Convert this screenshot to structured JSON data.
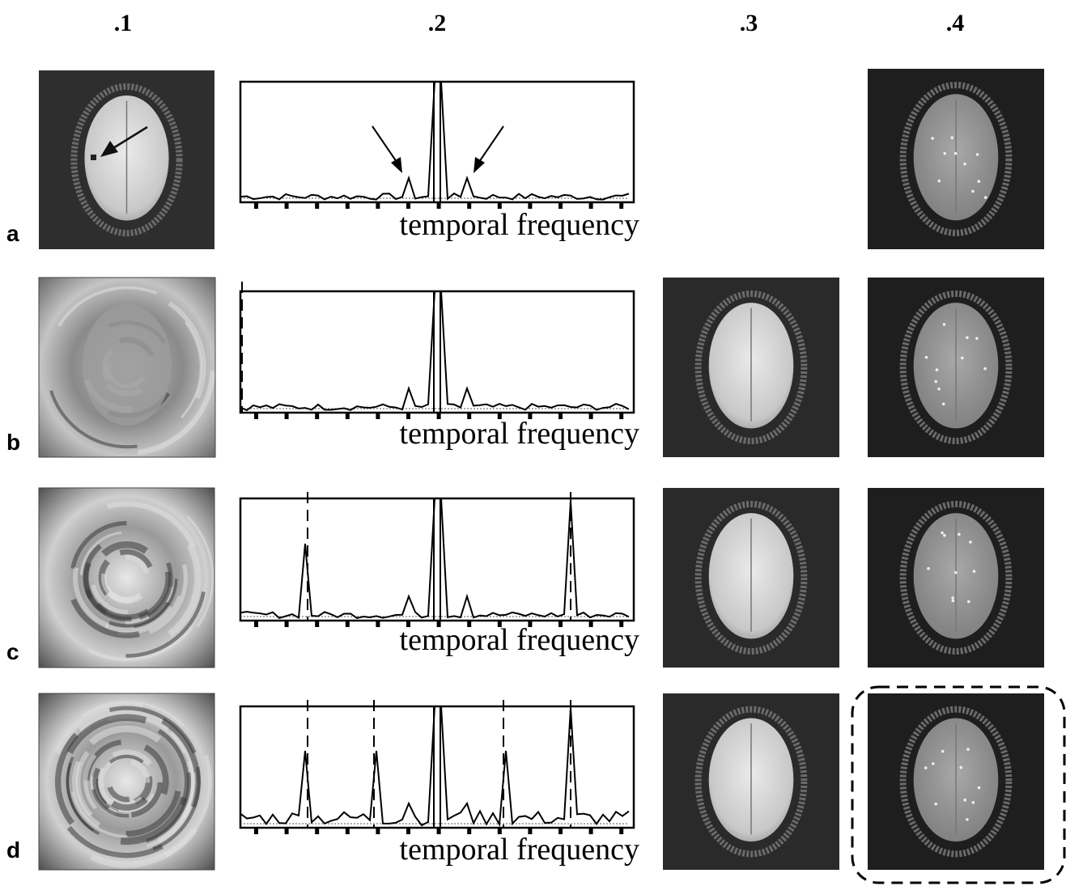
{
  "columns": [
    ".1",
    ".2",
    ".3",
    ".4"
  ],
  "rows": [
    {
      "label": "a",
      "axis_label": "temporal frequency"
    },
    {
      "label": "b",
      "axis_label": "temporal frequency"
    },
    {
      "label": "c",
      "axis_label": "temporal frequency"
    },
    {
      "label": "d",
      "axis_label": "temporal frequency"
    }
  ]
}
